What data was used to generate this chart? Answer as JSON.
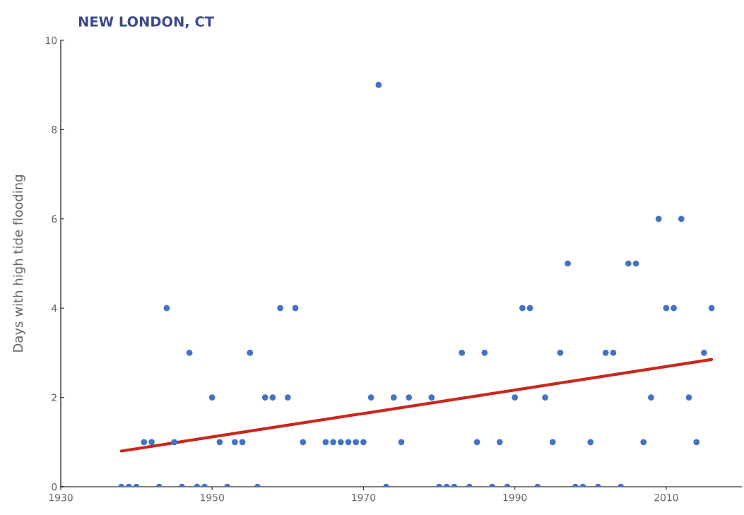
{
  "chart_data": {
    "type": "scatter",
    "title": "NEW LONDON, CT",
    "ylabel": "Days with high tide flooding",
    "xlim": [
      1930,
      2020
    ],
    "xticks": [
      1930,
      1950,
      1970,
      1990,
      2010
    ],
    "ylim": [
      0,
      10
    ],
    "yticks": [
      0,
      2,
      4,
      6,
      8,
      10
    ],
    "grid": false,
    "series": [
      {
        "marker": "circle",
        "color": "#4472c4",
        "x": [
          1938,
          1939,
          1940,
          1941,
          1942,
          1943,
          1944,
          1945,
          1946,
          1947,
          1948,
          1949,
          1950,
          1951,
          1952,
          1953,
          1954,
          1955,
          1956,
          1957,
          1958,
          1959,
          1960,
          1961,
          1962,
          1965,
          1966,
          1967,
          1968,
          1969,
          1970,
          1971,
          1972,
          1973,
          1974,
          1975,
          1976,
          1979,
          1980,
          1981,
          1982,
          1983,
          1984,
          1985,
          1986,
          1987,
          1988,
          1989,
          1990,
          1991,
          1992,
          1993,
          1994,
          1995,
          1996,
          1997,
          1998,
          1999,
          2000,
          2001,
          2002,
          2003,
          2004,
          2005,
          2006,
          2007,
          2008,
          2009,
          2010,
          2011,
          2012,
          2013,
          2014,
          2015,
          2016
        ],
        "values": [
          0,
          0,
          0,
          1,
          1,
          0,
          4,
          1,
          0,
          3,
          0,
          0,
          2,
          1,
          0,
          1,
          1,
          3,
          0,
          2,
          2,
          4,
          2,
          4,
          1,
          1,
          1,
          1,
          1,
          1,
          1,
          2,
          9,
          0,
          2,
          1,
          2,
          2,
          0,
          0,
          0,
          3,
          0,
          1,
          3,
          0,
          1,
          0,
          2,
          4,
          4,
          0,
          2,
          1,
          3,
          5,
          0,
          0,
          1,
          0,
          3,
          3,
          0,
          5,
          5,
          1,
          2,
          6,
          4,
          4,
          6,
          2,
          1,
          3,
          4
        ]
      },
      {
        "type": "line",
        "color": "#c8281e",
        "x": [
          1938,
          2016
        ],
        "values": [
          0.8,
          2.85
        ]
      }
    ]
  }
}
